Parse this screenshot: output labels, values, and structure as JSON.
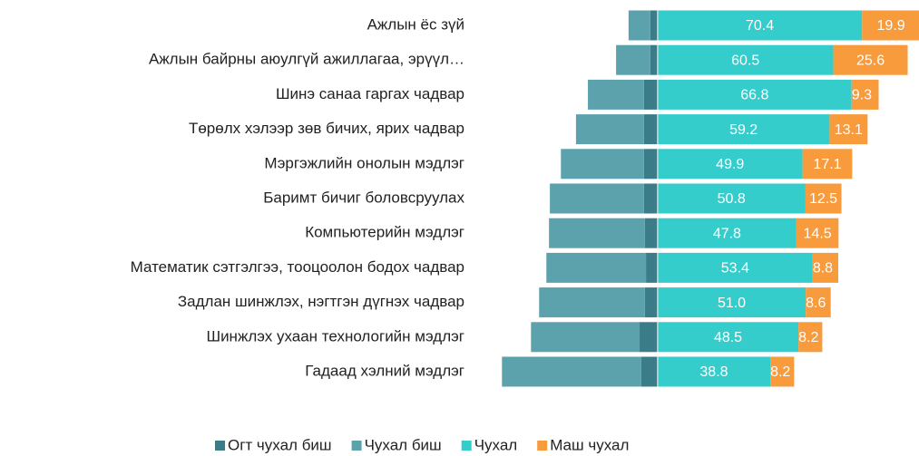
{
  "chart_data": {
    "type": "diverging-bar",
    "categories": [
      "Ажлын ёс зүй",
      "Ажлын байрны аюулгүй ажиллагаа, эрүүл…",
      "Шинэ санаа гаргах чадвар",
      "Төрөлх хэлээр зөв бичих, ярих чадвар",
      "Мэргэжлийн онолын мэдлэг",
      "Баримт бичиг боловсруулах",
      "Компьютерийн мэдлэг",
      "Математик сэтгэлгээ, тооцоолон бодох чадвар",
      "Задлан шинжлэх, нэгтгэн дүгнэх чадвар",
      "Шинжлэх ухаан технологийн мэдлэг",
      "Гадаад хэлний мэдлэг"
    ],
    "xlim": [
      -54,
      90
    ],
    "series": [
      {
        "name": "Огт чухал биш",
        "color": "#3a7d88",
        "side": "left",
        "values": [
          2.5,
          2.5,
          4.7,
          4.7,
          4.7,
          4.7,
          4.4,
          4.0,
          4.4,
          6.2,
          5.6
        ]
      },
      {
        "name": "Чухал биш",
        "color": "#5ba2ad",
        "side": "left",
        "values": [
          7.5,
          11.8,
          19.3,
          23.4,
          28.6,
          32.4,
          33.0,
          34.3,
          36.4,
          37.4,
          48.0
        ]
      },
      {
        "name": "Чухал",
        "color": "#35cccc",
        "side": "right",
        "values": [
          70.4,
          60.5,
          66.8,
          59.2,
          49.9,
          50.8,
          47.8,
          53.4,
          51.0,
          48.5,
          38.8
        ],
        "value_labels": [
          "70.4",
          "60.5",
          "66.8",
          "59.2",
          "49.9",
          "50.8",
          "47.8",
          "53.4",
          "51.0",
          "48.5",
          "38.8"
        ]
      },
      {
        "name": "Маш чухал",
        "color": "#f79b3c",
        "side": "right",
        "values": [
          19.9,
          25.6,
          9.3,
          13.1,
          17.1,
          12.5,
          14.5,
          8.8,
          8.6,
          8.2,
          8.2
        ],
        "value_labels": [
          "19.9",
          "25.6",
          "9.3",
          "13.1",
          "17.1",
          "12.5",
          "14.5",
          "8.8",
          "8.6",
          "8.2",
          "8.2"
        ]
      }
    ]
  }
}
